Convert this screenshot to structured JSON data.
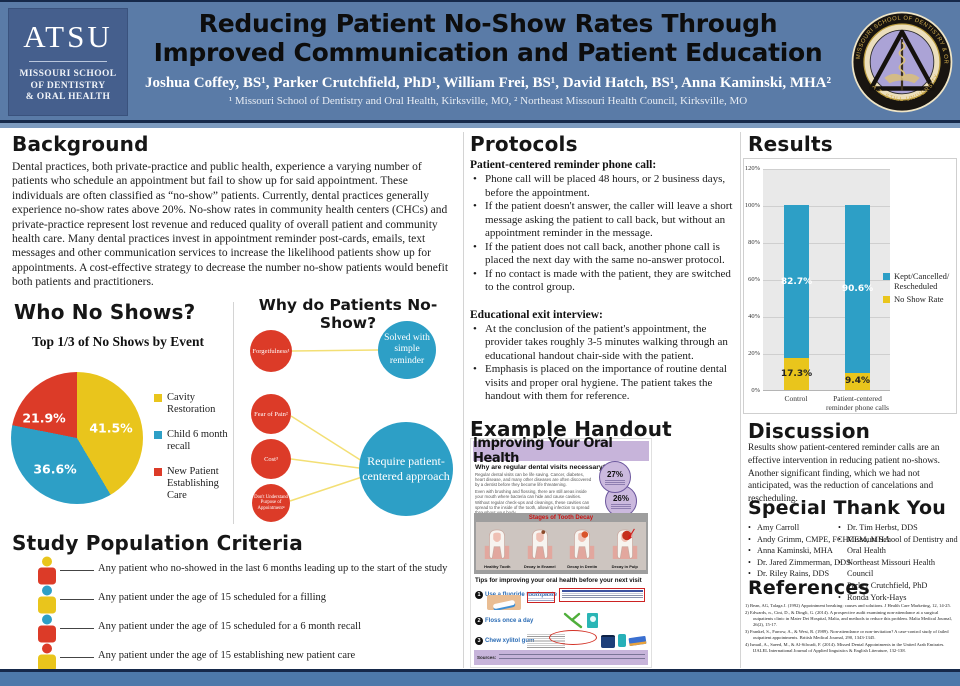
{
  "header": {
    "logo_text": "ATSU",
    "logo_sub1": "MISSOURI SCHOOL",
    "logo_sub2": "OF DENTISTRY",
    "logo_sub3": "& ORAL HEALTH",
    "title_line1": "Reducing Patient No-Show Rates Through",
    "title_line2": "Improved Communication and Patient Education",
    "authors": "Joshua Coffey, BS¹, Parker Crutchfield, PhD¹, William Frei, BS¹, David Hatch, BS¹, Anna Kaminski, MHA²",
    "affiliations": "¹ Missouri School of Dentistry and Oral Health, Kirksville, MO, ² Northeast Missouri Health Council, Kirksville, MO",
    "seal_top": "MISSOURI SCHOOL OF DENTISTRY & ORAL HEALTH",
    "seal_bottom": "A.T. STILL UNIVERSITY"
  },
  "background": {
    "heading": "Background",
    "body": "Dental practices, both private-practice and public health, experience a varying number of patients who schedule an appointment but fail to show up for said appointment. These individuals are often classified as “no-show” patients. Currently, dental practices generally experience no-show rates above 20%. No-show rates in community health centers (CHCs) and private-practice represent lost revenue and reduced quality of overall patient and community health care. Many dental practices invest in appointment reminder post-cards, emails, text messages and other communication services to increase the likelihood patients show up for appointments. A cost-effective strategy to decrease the number no-show patients would benefit both patients and practitioners."
  },
  "who_no_shows": {
    "heading": "Who No Shows?",
    "chart_title": "Top 1/3 of No Shows by Event"
  },
  "why_no_show": {
    "heading": "Why do Patients No-Show?",
    "causes": [
      {
        "label": "Forgetfulness¹"
      },
      {
        "label": "Fear of Pain²"
      },
      {
        "label": "Cost³"
      },
      {
        "label": "Don't Understand Purpose of Appointment⁴"
      }
    ],
    "solution_simple": "Solved with simple reminder",
    "solution_complex": "Require patient-centered approach"
  },
  "study_population": {
    "heading": "Study Population Criteria",
    "items": [
      {
        "text": "Any patient who no-showed in the last 6 months leading up to the start of the study",
        "head_color": "#e9c51c",
        "body_color": "#dc3b28"
      },
      {
        "text": "Any patient under the age of 15 scheduled for a filling",
        "head_color": "#2d9fc6",
        "body_color": "#e9c51c"
      },
      {
        "text": "Any patient under the age of 15 scheduled for a 6 month recall",
        "head_color": "#2d9fc6",
        "body_color": "#dc3b28"
      },
      {
        "text": "Any patient under the age of 15 establishing new patient care",
        "head_color": "#dc3b28",
        "body_color": "#e9c51c"
      }
    ]
  },
  "protocols": {
    "heading": "Protocols",
    "sub1": "Patient-centered reminder phone call:",
    "sub1_bullets": [
      "Phone call will be placed 48 hours, or 2 business days, before the appointment.",
      "If the patient doesn't answer, the caller will leave a short message asking the patient to call back, but without an appointment reminder in the message.",
      "If the patient does not call back, another phone call is placed the next day with the same no-answer protocol.",
      "If no contact is made with the patient, they are switched to the control group."
    ],
    "sub2": "Educational exit interview:",
    "sub2_bullets": [
      "At the conclusion of the patient's appointment, the provider takes roughly 3-5 minutes walking through an educational handout chair-side with the patient.",
      "Emphasis is placed on the importance of routine dental visits and proper oral hygiene. The patient takes the handout with them for reference."
    ]
  },
  "handout": {
    "heading": "Example Handout",
    "title": "Improving Your Oral Health",
    "q_heading": "Why are regular dental visits necessary?",
    "paragraphs": [
      "Regular dental visits can be life saving. Cancer, diabetes, heart disease, and many other diseases are often discovered by a dentist before they become life threatening.",
      "Even with brushing and flossing, there are still areas inside your mouth where bacteria can hide and cause cavities.",
      "Without regular check-ups and cleanings, these cavities can spread to the inside of the tooth, allowing infection to spread throughout your body."
    ],
    "badges": [
      "27%",
      "26%"
    ],
    "decay_title": "Stages of Tooth Decay",
    "decay_labels": [
      "Healthy Tooth",
      "Decay in Enamel",
      "Decay in Dentin",
      "Decay in Pulp"
    ],
    "tips_heading": "Tips for improving your oral health before your next visit",
    "tips": [
      {
        "num": "1",
        "label": "Use a fluoride toothpaste"
      },
      {
        "num": "2",
        "label": "Floss once a day"
      },
      {
        "num": "3",
        "label": "Chew xylitol gum"
      }
    ],
    "sources_label": "Sources:"
  },
  "results": {
    "heading": "Results",
    "legend": [
      {
        "line1": "Kept/Cancelled/",
        "line2": "Rescheduled"
      },
      {
        "line1": "No Show Rate",
        "line2": ""
      }
    ]
  },
  "discussion": {
    "heading": "Discussion",
    "body": "Results show patient-centered reminder calls are an effective intervention in reducing patient no-shows.  Another significant finding, which we had not anticipated, was the reduction of cancelations and rescheduling."
  },
  "thanks": {
    "heading": "Special Thank You",
    "col1": [
      "Amy Carroll",
      "Andy Grimm, CMPE, FCHCEM, MHA",
      "Anna Kaminski, MHA",
      "Dr. Jared Zimmerman, DDS",
      "Dr. Riley Rains, DDS"
    ],
    "col2": [
      "Dr. Tim Herbst, DDS",
      "Missouri School of Dentistry and Oral Health",
      "Northeast Missouri Health Council",
      "Parker Crutchfield, PhD",
      "Ronda York-Hays"
    ]
  },
  "references": {
    "heading": "References",
    "items": [
      "1)  Bean, AG, Talaga J. (1992) Appointment breaking: causes and solutions. J Health Care Marketing, 12, 14-25.",
      "2)  Edwards, n., Cini, D., & Dingli, G. (2014). A prospective audit examining non-attendance at a surgical outpatients clinic in Mater Dei Hospital, Malta, and methods to reduce this problem. Malta Medical Journal, 26(2), 15-17.",
      "3)  Frankel, S., Farrow, A., & West, R. (1989). Non-attendance or non-invitation? A case-control study of failed outpatient appointments. British Medical Journal, 290, 1343-1345.",
      "4)  Ismail, A., Saeed, M., & Al-Silwadi, F. (2014). Missed Dental Appointments in the United Arab Emirates. IJALEL International Journal of Applied linguistics & English Literature, 132-138."
    ]
  },
  "colors": {
    "header_blue": "#5a7ba7",
    "panel_blue": "#455f8d",
    "navy": "#16294a",
    "light_blue_strip": "#7d9bbf",
    "footer_blue": "#4d79aa",
    "yellow": "#e9c51c",
    "blue": "#2d9fc6",
    "red": "#dc3b28",
    "lavender": "#c7b4da",
    "plot_gray": "#e9e9e9"
  },
  "chart_data": [
    {
      "type": "pie",
      "title": "Top 1/3 of No Shows by Event",
      "labels": [
        "Cavity Restoration",
        "Child 6 month recall",
        "New Patient Establishing Care"
      ],
      "values": [
        41.5,
        36.6,
        21.9
      ],
      "value_labels": [
        "41.5%",
        "36.6%",
        "21.9%"
      ],
      "colors": [
        "#e9c51c",
        "#2d9fc6",
        "#dc3b28"
      ],
      "legend_position": "right"
    },
    {
      "type": "bar",
      "stacked": true,
      "categories": [
        "Control",
        "Patient-centered reminder phone calls"
      ],
      "series": [
        {
          "name": "No Show Rate",
          "values": [
            17.3,
            9.4
          ],
          "value_labels": [
            "17.3%",
            "9.4%"
          ],
          "color": "#e9c51c"
        },
        {
          "name": "Kept/Cancelled/Rescheduled",
          "values": [
            82.7,
            90.6
          ],
          "value_labels": [
            "82.7%",
            "90.6%"
          ],
          "color": "#2d9fc6"
        }
      ],
      "ylim": [
        0,
        120
      ],
      "yticks": [
        "0%",
        "20%",
        "40%",
        "60%",
        "80%",
        "100%",
        "120%"
      ],
      "grid": true,
      "legend_position": "right"
    }
  ]
}
